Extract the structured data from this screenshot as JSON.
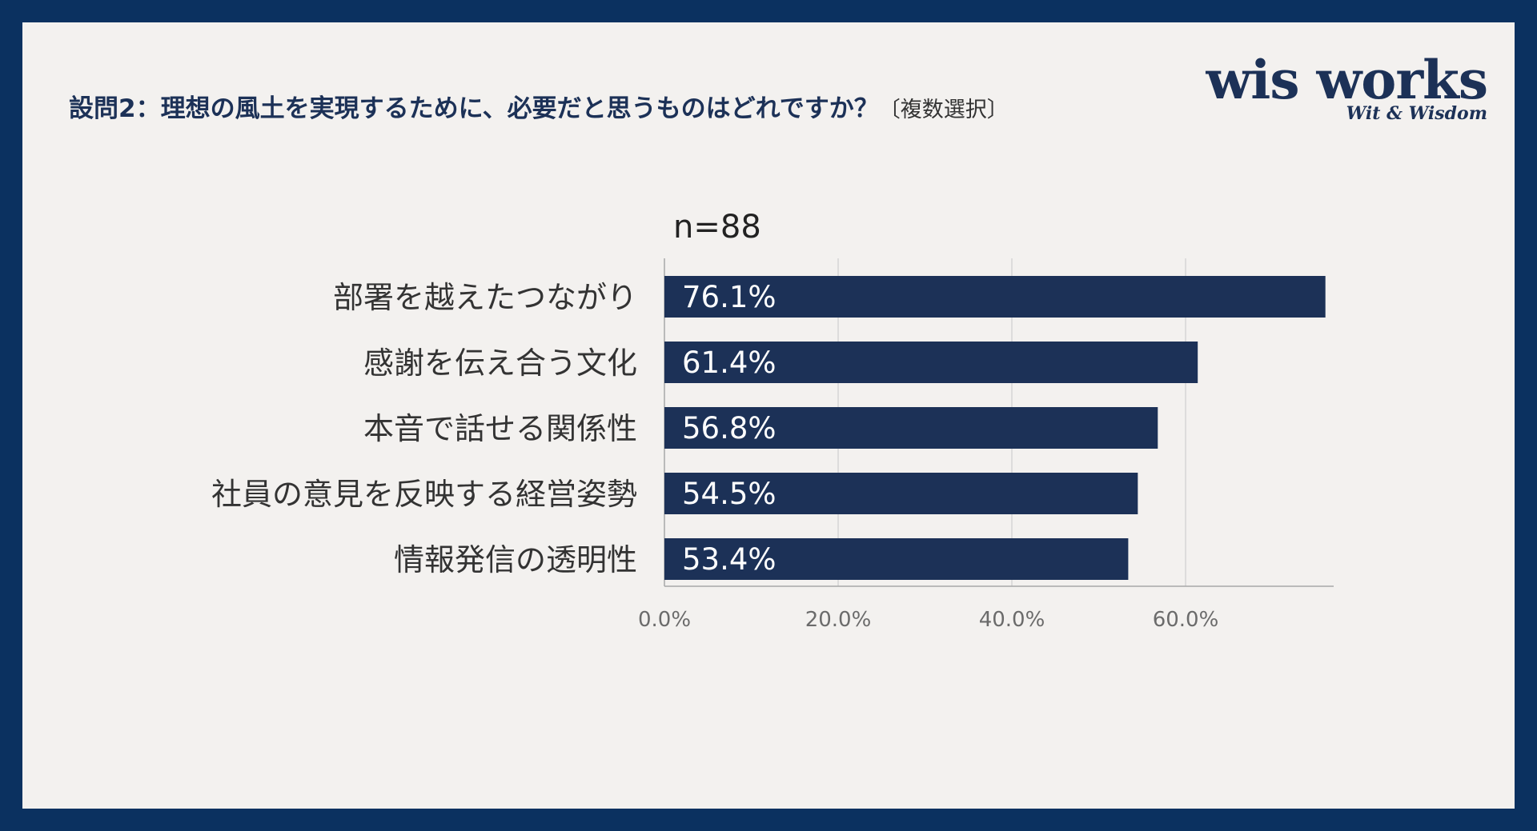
{
  "header": {
    "question": "設問2：理想の風土を実現するために、必要だと思うものはどれですか？",
    "note": "〔複数選択〕"
  },
  "logo": {
    "main": "wis works",
    "sub": "Wit & Wisdom"
  },
  "chart_data": {
    "type": "bar",
    "orientation": "horizontal",
    "sample_label": "n=88",
    "categories": [
      "部署を越えたつながり",
      "感謝を伝え合う文化",
      "本音で話せる関係性",
      "社員の意見を反映する経営姿勢",
      "情報発信の透明性"
    ],
    "values": [
      76.1,
      61.4,
      56.8,
      54.5,
      53.4
    ],
    "data_labels": [
      "76.1%",
      "61.4%",
      "56.8%",
      "54.5%",
      "53.4%"
    ],
    "x_ticks": [
      0,
      20,
      40,
      60
    ],
    "x_tick_labels": [
      "0.0%",
      "20.0%",
      "40.0%",
      "60.0%"
    ],
    "xlim": [
      0,
      77
    ],
    "grid": true,
    "bar_color": "#1c3157",
    "label_color": "#ffffff",
    "grid_color": "#d6d6d6",
    "axis_color": "#a8a8a8"
  },
  "colors": {
    "frame": "#0b3160",
    "background": "#f3f1ef",
    "title": "#1c3157"
  }
}
